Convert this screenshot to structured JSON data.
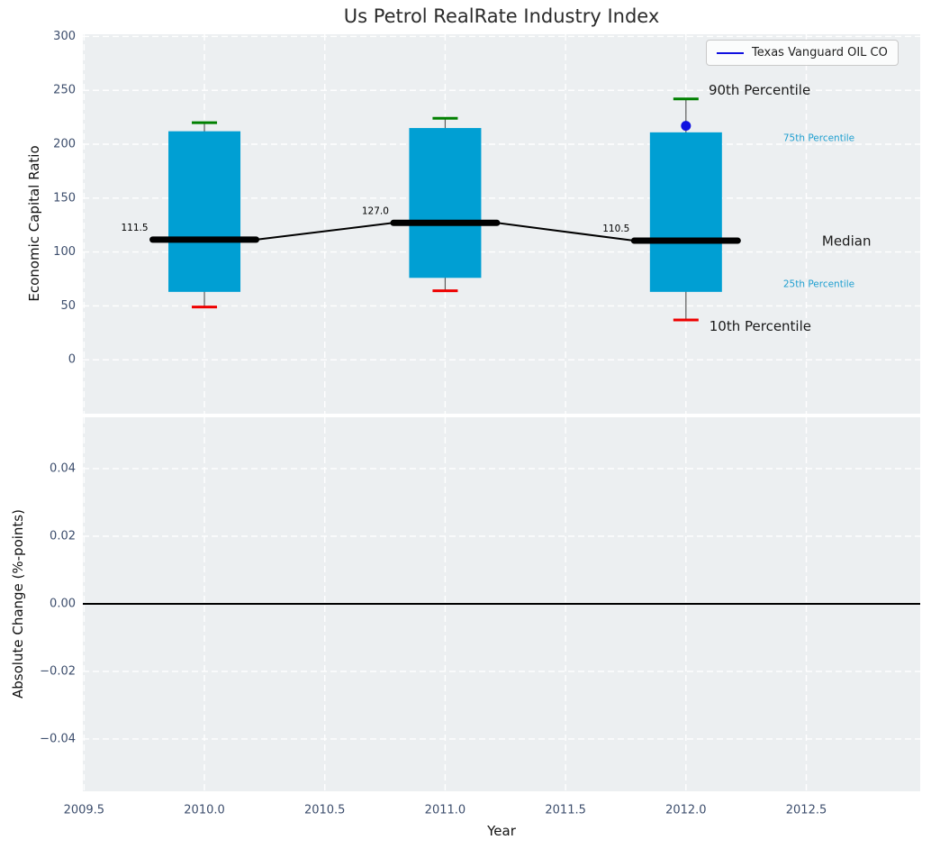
{
  "chart_data": {
    "type": "box",
    "title": "Us Petrol RealRate Industry Index",
    "xlabel": "Year",
    "xlim": [
      2009.495,
      2012.973
    ],
    "xticks": [
      2009.5,
      2010.0,
      2010.5,
      2011.0,
      2011.5,
      2012.0,
      2012.5
    ],
    "legend": {
      "label": "Texas Vanguard OIL CO",
      "position": "upper right"
    },
    "grid": {
      "visible": true,
      "style": "dashed",
      "color": "#ffffff"
    },
    "top_panel": {
      "ylabel": "Economic Capital Ratio",
      "ylim": [
        -50,
        302
      ],
      "yticks": [
        0,
        50,
        100,
        150,
        200,
        250,
        300
      ],
      "boxes": [
        {
          "year": 2010,
          "p10": 49,
          "q1": 63,
          "median": 111.5,
          "q3": 212,
          "p90": 220
        },
        {
          "year": 2011,
          "p10": 64,
          "q1": 76,
          "median": 127.0,
          "q3": 215,
          "p90": 224
        },
        {
          "year": 2012,
          "p10": 37,
          "q1": 63,
          "median": 110.5,
          "q3": 211,
          "p90": 242
        }
      ],
      "company_points": [
        {
          "year": 2012,
          "value": 217
        }
      ],
      "annotations": [
        {
          "text": "90th Percentile",
          "year": 2012.094,
          "value": 250,
          "size": "large",
          "color": "#1a1a1a"
        },
        {
          "text": "75th Percentile",
          "year": 2012.404,
          "value": 205.5,
          "size": "small",
          "color": "#1f9fd0"
        },
        {
          "text": "Median",
          "year": 2012.565,
          "value": 110,
          "size": "large",
          "color": "#1a1a1a"
        },
        {
          "text": "25th Percentile",
          "year": 2012.404,
          "value": 70,
          "size": "small",
          "color": "#1f9fd0"
        },
        {
          "text": "10th Percentile",
          "year": 2012.097,
          "value": 31,
          "size": "large",
          "color": "#1a1a1a"
        }
      ]
    },
    "bottom_panel": {
      "ylabel": "Absolute Change (%-points)",
      "ylim": [
        -0.0555,
        0.0552
      ],
      "yticks": [
        0.04,
        0.02,
        0.0,
        -0.02,
        -0.04
      ],
      "zero_line": 0.0
    },
    "colors": {
      "axes_background": "#eceff1",
      "grid": "#ffffff",
      "box": "#009fd3",
      "whisker": "#5a5a5a",
      "cap_top": "#008000",
      "cap_bottom": "#ee0000",
      "median": "#000000",
      "company": "#1010e0",
      "tick_labels": "#3d4e6d",
      "axis_labels": "#111111"
    }
  }
}
